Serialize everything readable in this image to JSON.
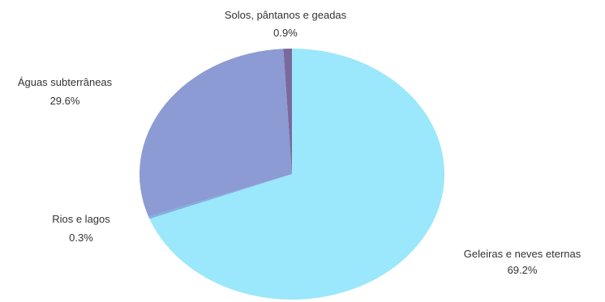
{
  "chart_data": {
    "type": "pie",
    "title": "",
    "slices": [
      {
        "label": "Geleiras e neves eternas",
        "value": 69.2,
        "display": "69.2%",
        "color": "#9be7fb"
      },
      {
        "label": "Rios e lagos",
        "value": 0.3,
        "display": "0.3%",
        "color": "#7fb0e0"
      },
      {
        "label": "Águas subterrâneas",
        "value": 29.6,
        "display": "29.6%",
        "color": "#8c9bd4"
      },
      {
        "label": "Solos, pântanos e geadas",
        "value": 0.9,
        "display": "0.9%",
        "color": "#7a6a9c"
      }
    ],
    "start": "top",
    "direction": "clockwise"
  }
}
